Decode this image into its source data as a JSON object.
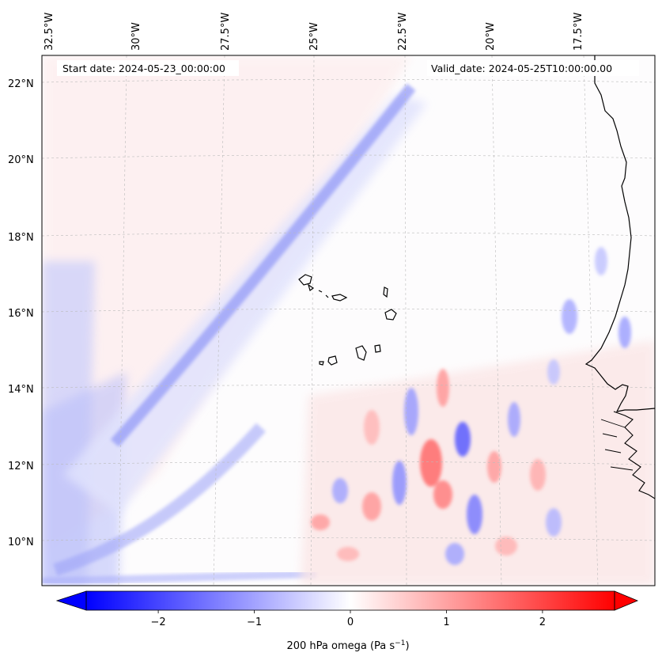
{
  "map": {
    "start_label": "Start date: 2024-05-23_00:00:00",
    "valid_label": "Valid_date: 2024-05-25T10:00:00.00",
    "lon_labels": [
      "32.5°W",
      "30°W",
      "27.5°W",
      "25°W",
      "22.5°W",
      "20°W",
      "17.5°W"
    ],
    "lat_labels": [
      "22°N",
      "20°N",
      "18°N",
      "16°N",
      "14°N",
      "12°N",
      "10°N"
    ],
    "field_variable": "200 hPa omega",
    "colormap": "bwr",
    "colors": {
      "negative": "#0000ff",
      "zero": "#ffffff",
      "positive": "#ff0000",
      "coast": "#000000",
      "grid": "#bbbbbb"
    }
  },
  "colorbar": {
    "ticks": [
      "−2",
      "−1",
      "0",
      "1",
      "2"
    ],
    "tick_values": [
      -2,
      -1,
      0,
      1,
      2
    ],
    "range": [
      -2.75,
      2.75
    ],
    "extend": "both",
    "label_main": "200 hPa omega (Pa s",
    "label_exp": "−1",
    "label_close": ")"
  }
}
